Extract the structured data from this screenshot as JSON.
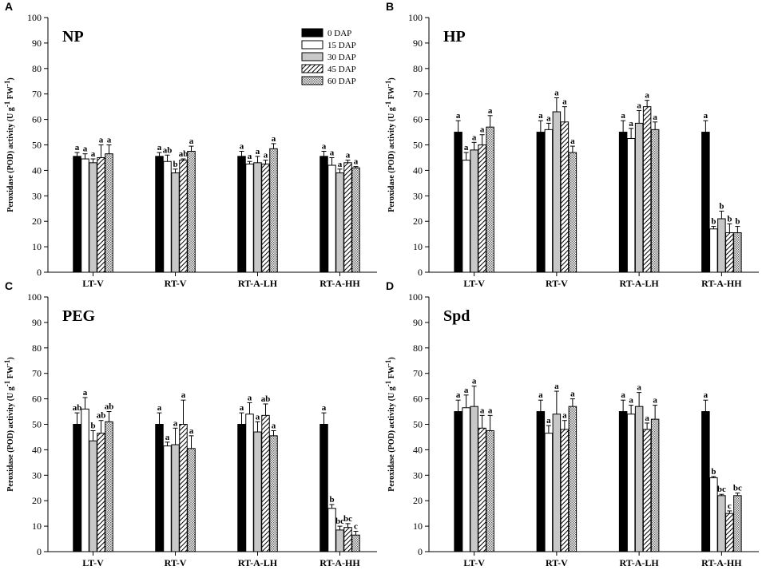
{
  "colors": {
    "axis": "#000000",
    "bg": "#ffffff"
  },
  "chart_data": [
    {
      "type": "bar",
      "panel_label": "A",
      "title": "NP",
      "ylabel": "Peroxidase (POD) activity (U g",
      "ylabel_sup1": "-1",
      "ylabel_mid": " FW",
      "ylabel_sup2": "-1",
      "ylabel_end": ")",
      "ylim": [
        0,
        100
      ],
      "yticks": [
        0,
        10,
        20,
        30,
        40,
        50,
        60,
        70,
        80,
        90,
        100
      ],
      "categories": [
        "LT-V",
        "RT-V",
        "RT-A-LH",
        "RT-A-HH"
      ],
      "legend": true,
      "series": [
        {
          "name": "0 DAP",
          "values": [
            45.5,
            45.5,
            45.5,
            45.5
          ],
          "errors": [
            1.5,
            1.5,
            2.0,
            2.0
          ],
          "letters": [
            "a",
            "a",
            "a",
            "a"
          ]
        },
        {
          "name": "15 DAP",
          "values": [
            44.5,
            43.5,
            42.5,
            42.0
          ],
          "errors": [
            2.0,
            2.5,
            1.0,
            3.0
          ],
          "letters": [
            "a",
            "ab",
            "a",
            "a"
          ]
        },
        {
          "name": "30 DAP",
          "values": [
            43.0,
            39.0,
            43.0,
            39.0
          ],
          "errors": [
            1.5,
            1.5,
            2.5,
            1.5
          ],
          "letters": [
            "a",
            "b",
            "a",
            "a"
          ]
        },
        {
          "name": "45 DAP",
          "values": [
            45.0,
            44.0,
            42.5,
            43.0
          ],
          "errors": [
            5.0,
            0.5,
            1.5,
            1.0
          ],
          "letters": [
            "a",
            "ab",
            "a",
            "a"
          ]
        },
        {
          "name": "60 DAP",
          "values": [
            46.5,
            47.5,
            48.5,
            41.0
          ],
          "errors": [
            3.5,
            2.0,
            2.0,
            0.5
          ],
          "letters": [
            "a",
            "a",
            "a",
            "a"
          ]
        }
      ]
    },
    {
      "type": "bar",
      "panel_label": "B",
      "title": "HP",
      "ylabel": "Peroxidase (POD) activity (U g",
      "ylabel_sup1": "-1",
      "ylabel_mid": " FW",
      "ylabel_sup2": "-1",
      "ylabel_end": ")",
      "ylim": [
        0,
        100
      ],
      "yticks": [
        0,
        10,
        20,
        30,
        40,
        50,
        60,
        70,
        80,
        90,
        100
      ],
      "categories": [
        "LT-V",
        "RT-V",
        "RT-A-LH",
        "RT-A-HH"
      ],
      "legend": false,
      "series": [
        {
          "name": "0 DAP",
          "values": [
            55.0,
            55.0,
            55.0,
            55.0
          ],
          "errors": [
            4.5,
            4.5,
            4.5,
            4.5
          ],
          "letters": [
            "a",
            "a",
            "a",
            "a"
          ]
        },
        {
          "name": "15 DAP",
          "values": [
            44.0,
            56.0,
            52.5,
            17.0
          ],
          "errors": [
            3.0,
            2.5,
            4.0,
            1.0
          ],
          "letters": [
            "a",
            "a",
            "a",
            "b"
          ]
        },
        {
          "name": "30 DAP",
          "values": [
            48.0,
            63.0,
            58.5,
            21.0
          ],
          "errors": [
            3.0,
            5.5,
            5.0,
            3.0
          ],
          "letters": [
            "a",
            "a",
            "a",
            "b"
          ]
        },
        {
          "name": "45 DAP",
          "values": [
            50.0,
            59.0,
            65.0,
            15.5
          ],
          "errors": [
            4.0,
            6.0,
            2.5,
            3.5
          ],
          "letters": [
            "a",
            "a",
            "a",
            "b"
          ]
        },
        {
          "name": "60 DAP",
          "values": [
            57.0,
            47.0,
            56.0,
            15.5
          ],
          "errors": [
            4.5,
            2.5,
            3.0,
            2.5
          ],
          "letters": [
            "a",
            "a",
            "a",
            "b"
          ]
        }
      ]
    },
    {
      "type": "bar",
      "panel_label": "C",
      "title": "PEG",
      "ylabel": "Peroxidase (POD) activity (U g",
      "ylabel_sup1": "-1",
      "ylabel_mid": " FW",
      "ylabel_sup2": "-1",
      "ylabel_end": ")",
      "ylim": [
        0,
        100
      ],
      "yticks": [
        0,
        10,
        20,
        30,
        40,
        50,
        60,
        70,
        80,
        90,
        100
      ],
      "categories": [
        "LT-V",
        "RT-V",
        "RT-A-LH",
        "RT-A-HH"
      ],
      "legend": false,
      "series": [
        {
          "name": "0 DAP",
          "values": [
            50.0,
            50.0,
            50.0,
            50.0
          ],
          "errors": [
            4.5,
            4.5,
            4.5,
            4.5
          ],
          "letters": [
            "ab",
            "a",
            "a",
            "a"
          ]
        },
        {
          "name": "15 DAP",
          "values": [
            56.0,
            41.5,
            54.0,
            17.0
          ],
          "errors": [
            4.5,
            1.5,
            4.5,
            1.5
          ],
          "letters": [
            "a",
            "a",
            "a",
            "b"
          ]
        },
        {
          "name": "30 DAP",
          "values": [
            43.5,
            42.0,
            47.0,
            8.5
          ],
          "errors": [
            4.0,
            6.5,
            4.0,
            1.5
          ],
          "letters": [
            "b",
            "a",
            "a",
            "bc"
          ]
        },
        {
          "name": "45 DAP",
          "values": [
            46.5,
            50.0,
            53.5,
            9.5
          ],
          "errors": [
            5.0,
            9.5,
            4.5,
            1.5
          ],
          "letters": [
            "ab",
            "a",
            "ab",
            "bc"
          ]
        },
        {
          "name": "60 DAP",
          "values": [
            51.0,
            40.5,
            45.5,
            6.5
          ],
          "errors": [
            4.0,
            5.0,
            2.0,
            1.5
          ],
          "letters": [
            "ab",
            "a",
            "a",
            "c"
          ]
        }
      ]
    },
    {
      "type": "bar",
      "panel_label": "D",
      "title": "Spd",
      "ylabel": "Peroxidase (POD) activity (U g",
      "ylabel_sup1": "-1",
      "ylabel_mid": " FW",
      "ylabel_sup2": "-1",
      "ylabel_end": ")",
      "ylim": [
        0,
        100
      ],
      "yticks": [
        0,
        10,
        20,
        30,
        40,
        50,
        60,
        70,
        80,
        90,
        100
      ],
      "categories": [
        "LT-V",
        "RT-V",
        "RT-A-LH",
        "RT-A-HH"
      ],
      "legend": false,
      "series": [
        {
          "name": "0 DAP",
          "values": [
            55.0,
            55.0,
            55.0,
            55.0
          ],
          "errors": [
            4.5,
            4.5,
            4.5,
            4.5
          ],
          "letters": [
            "a",
            "a",
            "a",
            "a"
          ]
        },
        {
          "name": "15 DAP",
          "values": [
            56.5,
            46.5,
            54.0,
            29.0
          ],
          "errors": [
            5.0,
            3.0,
            3.5,
            0.5
          ],
          "letters": [
            "a",
            "a",
            "a",
            "b"
          ]
        },
        {
          "name": "30 DAP",
          "values": [
            57.0,
            54.0,
            57.0,
            22.0
          ],
          "errors": [
            8.0,
            9.0,
            5.5,
            0.5
          ],
          "letters": [
            "a",
            "a",
            "a",
            "bc"
          ]
        },
        {
          "name": "45 DAP",
          "values": [
            48.5,
            48.0,
            48.0,
            15.0
          ],
          "errors": [
            5.0,
            3.5,
            2.5,
            1.0
          ],
          "letters": [
            "a",
            "a",
            "a",
            "c"
          ]
        },
        {
          "name": "60 DAP",
          "values": [
            47.5,
            57.0,
            52.0,
            22.0
          ],
          "errors": [
            6.0,
            3.0,
            5.5,
            1.0
          ],
          "letters": [
            "a",
            "a",
            "a",
            "bc"
          ]
        }
      ]
    }
  ]
}
